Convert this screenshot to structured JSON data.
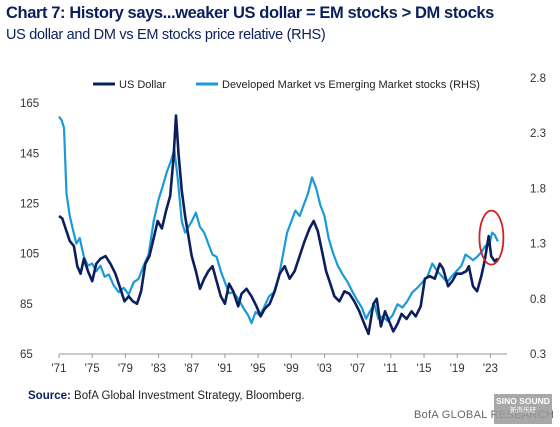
{
  "header": {
    "title": "Chart 7: History says...weaker US dollar = EM stocks > DM stocks",
    "subtitle": "US dollar and DM vs EM stocks price relative (RHS)"
  },
  "source": {
    "label": "Source:",
    "text": "BofA Global Investment Strategy, Bloomberg."
  },
  "footer": {
    "brand": "BofA GLOBAL RESEARCH"
  },
  "watermark": {
    "line1": "SINO SOUND",
    "line2": "新声乐研"
  },
  "chart_data": {
    "type": "line",
    "xlabel": "",
    "ylabel": "",
    "ylim": [
      65,
      175
    ],
    "y2lim": [
      0.3,
      2.8
    ],
    "xlim": [
      1971,
      2025
    ],
    "grid": false,
    "legend_placement": "top",
    "y_ticks": [
      65,
      85,
      105,
      125,
      145,
      165
    ],
    "y2_ticks": [
      "0.3",
      "0.8",
      "1.3",
      "1.8",
      "2.3",
      "2.8"
    ],
    "x_ticks": [
      {
        "year": 1971,
        "label": "'71"
      },
      {
        "year": 1975,
        "label": "'75"
      },
      {
        "year": 1979,
        "label": "'79"
      },
      {
        "year": 1983,
        "label": "'83"
      },
      {
        "year": 1987,
        "label": "'87"
      },
      {
        "year": 1991,
        "label": "'91"
      },
      {
        "year": 1995,
        "label": "'95"
      },
      {
        "year": 1999,
        "label": "'99"
      },
      {
        "year": 2003,
        "label": "'03"
      },
      {
        "year": 2007,
        "label": "'07"
      },
      {
        "year": 2011,
        "label": "'11"
      },
      {
        "year": 2015,
        "label": "'15"
      },
      {
        "year": 2019,
        "label": "'19"
      },
      {
        "year": 2023,
        "label": "'23"
      }
    ],
    "highlight": {
      "x": 2023.0,
      "y2": 1.3,
      "color": "#d42020"
    },
    "series": [
      {
        "name": "US Dollar",
        "axis": "left",
        "color": "#0b1f5c",
        "points": [
          [
            1971.0,
            120
          ],
          [
            1971.4,
            119
          ],
          [
            1971.8,
            115
          ],
          [
            1972.3,
            110
          ],
          [
            1972.8,
            108
          ],
          [
            1973.2,
            100
          ],
          [
            1973.6,
            97
          ],
          [
            1974.0,
            103
          ],
          [
            1974.5,
            98
          ],
          [
            1975.0,
            94
          ],
          [
            1975.5,
            101
          ],
          [
            1976.0,
            103
          ],
          [
            1976.6,
            104
          ],
          [
            1977.2,
            101
          ],
          [
            1977.8,
            97
          ],
          [
            1978.3,
            92
          ],
          [
            1978.9,
            86
          ],
          [
            1979.4,
            88
          ],
          [
            1979.9,
            86
          ],
          [
            1980.4,
            85
          ],
          [
            1980.9,
            90
          ],
          [
            1981.4,
            101
          ],
          [
            1981.9,
            104
          ],
          [
            1982.4,
            111
          ],
          [
            1982.9,
            118
          ],
          [
            1983.4,
            115
          ],
          [
            1983.9,
            122
          ],
          [
            1984.4,
            128
          ],
          [
            1984.8,
            143
          ],
          [
            1985.1,
            160
          ],
          [
            1985.4,
            145
          ],
          [
            1985.8,
            130
          ],
          [
            1986.2,
            120
          ],
          [
            1986.6,
            112
          ],
          [
            1987.0,
            104
          ],
          [
            1987.5,
            98
          ],
          [
            1988.0,
            91
          ],
          [
            1988.5,
            95
          ],
          [
            1989.0,
            98
          ],
          [
            1989.5,
            100
          ],
          [
            1990.0,
            94
          ],
          [
            1990.5,
            88
          ],
          [
            1991.0,
            85
          ],
          [
            1991.5,
            93
          ],
          [
            1992.0,
            90
          ],
          [
            1992.6,
            84
          ],
          [
            1993.0,
            89
          ],
          [
            1993.6,
            91
          ],
          [
            1994.2,
            88
          ],
          [
            1994.8,
            84
          ],
          [
            1995.3,
            80
          ],
          [
            1995.8,
            83
          ],
          [
            1996.4,
            85
          ],
          [
            1997.0,
            90
          ],
          [
            1997.6,
            97
          ],
          [
            1998.2,
            100
          ],
          [
            1998.8,
            95
          ],
          [
            1999.4,
            98
          ],
          [
            2000.0,
            104
          ],
          [
            2000.6,
            110
          ],
          [
            2001.2,
            115
          ],
          [
            2001.7,
            118
          ],
          [
            2002.2,
            114
          ],
          [
            2002.7,
            106
          ],
          [
            2003.2,
            98
          ],
          [
            2003.7,
            93
          ],
          [
            2004.2,
            88
          ],
          [
            2004.8,
            86
          ],
          [
            2005.4,
            90
          ],
          [
            2006.0,
            89
          ],
          [
            2006.6,
            86
          ],
          [
            2007.2,
            82
          ],
          [
            2007.8,
            77
          ],
          [
            2008.3,
            73
          ],
          [
            2008.9,
            85
          ],
          [
            2009.3,
            87
          ],
          [
            2009.8,
            76
          ],
          [
            2010.3,
            82
          ],
          [
            2010.8,
            78
          ],
          [
            2011.3,
            74
          ],
          [
            2011.8,
            77
          ],
          [
            2012.3,
            81
          ],
          [
            2012.9,
            79
          ],
          [
            2013.5,
            82
          ],
          [
            2014.0,
            80
          ],
          [
            2014.6,
            84
          ],
          [
            2015.1,
            95
          ],
          [
            2015.7,
            96
          ],
          [
            2016.3,
            95
          ],
          [
            2016.9,
            101
          ],
          [
            2017.3,
            99
          ],
          [
            2017.9,
            92
          ],
          [
            2018.4,
            94
          ],
          [
            2018.9,
            97
          ],
          [
            2019.5,
            97
          ],
          [
            2020.1,
            98
          ],
          [
            2020.4,
            100
          ],
          [
            2020.9,
            92
          ],
          [
            2021.4,
            90
          ],
          [
            2021.9,
            96
          ],
          [
            2022.3,
            102
          ],
          [
            2022.8,
            112
          ],
          [
            2023.1,
            104
          ],
          [
            2023.5,
            102
          ],
          [
            2023.9,
            103
          ]
        ]
      },
      {
        "name": "Developed Market vs Emerging Market stocks (RHS)",
        "axis": "right",
        "color": "#1a9ad8",
        "points": [
          [
            1971.0,
            2.45
          ],
          [
            1971.3,
            2.42
          ],
          [
            1971.6,
            2.35
          ],
          [
            1971.9,
            1.75
          ],
          [
            1972.3,
            1.55
          ],
          [
            1972.7,
            1.42
          ],
          [
            1973.1,
            1.3
          ],
          [
            1973.5,
            1.35
          ],
          [
            1974.0,
            1.18
          ],
          [
            1974.5,
            1.1
          ],
          [
            1975.0,
            1.12
          ],
          [
            1975.5,
            1.05
          ],
          [
            1976.0,
            1.1
          ],
          [
            1976.5,
            1.0
          ],
          [
            1977.0,
            1.02
          ],
          [
            1977.6,
            0.92
          ],
          [
            1978.2,
            0.86
          ],
          [
            1978.8,
            0.9
          ],
          [
            1979.4,
            0.84
          ],
          [
            1980.0,
            0.95
          ],
          [
            1980.6,
            0.98
          ],
          [
            1981.2,
            1.1
          ],
          [
            1981.8,
            1.2
          ],
          [
            1982.4,
            1.5
          ],
          [
            1983.0,
            1.7
          ],
          [
            1983.5,
            1.82
          ],
          [
            1984.0,
            1.95
          ],
          [
            1984.5,
            2.05
          ],
          [
            1984.9,
            2.15
          ],
          [
            1985.3,
            1.9
          ],
          [
            1985.8,
            1.5
          ],
          [
            1986.2,
            1.4
          ],
          [
            1986.6,
            1.45
          ],
          [
            1987.0,
            1.5
          ],
          [
            1987.5,
            1.58
          ],
          [
            1988.0,
            1.45
          ],
          [
            1988.5,
            1.4
          ],
          [
            1989.0,
            1.3
          ],
          [
            1989.5,
            1.2
          ],
          [
            1990.0,
            1.18
          ],
          [
            1990.5,
            1.05
          ],
          [
            1991.0,
            0.95
          ],
          [
            1991.5,
            0.85
          ],
          [
            1992.0,
            0.86
          ],
          [
            1992.6,
            0.8
          ],
          [
            1993.2,
            0.72
          ],
          [
            1993.8,
            0.65
          ],
          [
            1994.2,
            0.58
          ],
          [
            1994.7,
            0.68
          ],
          [
            1995.2,
            0.65
          ],
          [
            1995.7,
            0.72
          ],
          [
            1996.3,
            0.82
          ],
          [
            1996.9,
            0.86
          ],
          [
            1997.5,
            1.0
          ],
          [
            1998.0,
            1.2
          ],
          [
            1998.5,
            1.4
          ],
          [
            1999.0,
            1.5
          ],
          [
            1999.5,
            1.6
          ],
          [
            2000.0,
            1.55
          ],
          [
            2000.5,
            1.65
          ],
          [
            2001.0,
            1.75
          ],
          [
            2001.5,
            1.9
          ],
          [
            2002.0,
            1.8
          ],
          [
            2002.5,
            1.65
          ],
          [
            2003.0,
            1.55
          ],
          [
            2003.5,
            1.35
          ],
          [
            2004.0,
            1.22
          ],
          [
            2004.6,
            1.1
          ],
          [
            2005.2,
            1.02
          ],
          [
            2005.8,
            0.95
          ],
          [
            2006.4,
            0.86
          ],
          [
            2007.0,
            0.78
          ],
          [
            2007.5,
            0.72
          ],
          [
            2008.0,
            0.62
          ],
          [
            2008.6,
            0.7
          ],
          [
            2009.0,
            0.75
          ],
          [
            2009.5,
            0.62
          ],
          [
            2010.0,
            0.64
          ],
          [
            2010.6,
            0.6
          ],
          [
            2011.2,
            0.65
          ],
          [
            2011.8,
            0.75
          ],
          [
            2012.4,
            0.72
          ],
          [
            2013.0,
            0.78
          ],
          [
            2013.6,
            0.86
          ],
          [
            2014.2,
            0.9
          ],
          [
            2014.8,
            0.95
          ],
          [
            2015.4,
            1.0
          ],
          [
            2016.0,
            1.12
          ],
          [
            2016.6,
            1.05
          ],
          [
            2017.2,
            1.0
          ],
          [
            2017.8,
            0.95
          ],
          [
            2018.3,
            1.0
          ],
          [
            2018.9,
            1.05
          ],
          [
            2019.5,
            1.1
          ],
          [
            2020.0,
            1.2
          ],
          [
            2020.4,
            1.18
          ],
          [
            2020.9,
            1.15
          ],
          [
            2021.4,
            1.18
          ],
          [
            2021.9,
            1.22
          ],
          [
            2022.4,
            1.28
          ],
          [
            2022.9,
            1.3
          ],
          [
            2023.2,
            1.4
          ],
          [
            2023.5,
            1.38
          ],
          [
            2023.9,
            1.32
          ]
        ]
      }
    ]
  }
}
